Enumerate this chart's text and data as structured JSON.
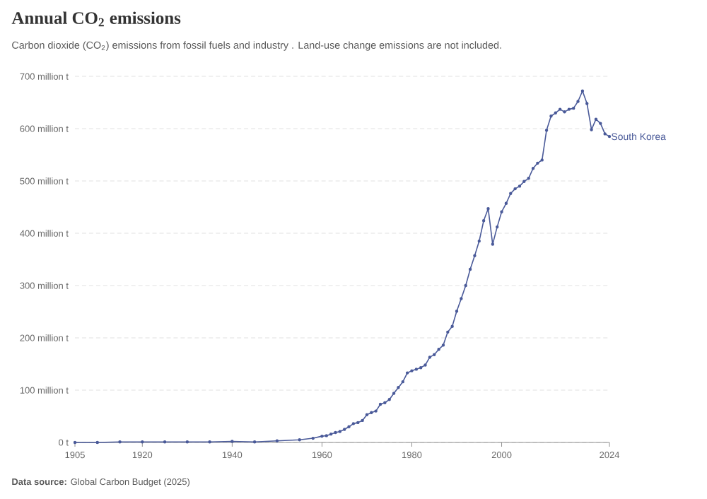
{
  "chart_data": {
    "type": "line",
    "title": "Annual CO$_{2}$ emissions",
    "subtitle": "Carbon dioxide (CO$_{2}$) emissions from fossil fuels and industry . Land-use change emissions are not included.",
    "annotations": [
      "**Data source:** Global Carbon Budget (2025)"
    ],
    "xlim": [
      1905,
      2024
    ],
    "xticks": [
      1905,
      1920,
      1940,
      1960,
      1980,
      2000,
      2024
    ],
    "ylim": [
      0,
      700
    ],
    "yticks": [
      {
        "value": 0,
        "label": "0 t"
      },
      {
        "value": 100,
        "label": "100 million t"
      },
      {
        "value": 200,
        "label": "200 million t"
      },
      {
        "value": 300,
        "label": "300 million t"
      },
      {
        "value": 400,
        "label": "400 million t"
      },
      {
        "value": 500,
        "label": "500 million t"
      },
      {
        "value": 600,
        "label": "600 million t"
      },
      {
        "value": 700,
        "label": "700 million t"
      }
    ],
    "grid": "y",
    "marker": "circle",
    "line_style": "solid",
    "series": [
      {
        "name": "South Korea",
        "color": "#4a5a99",
        "x": [
          1905,
          1910,
          1915,
          1920,
          1925,
          1930,
          1935,
          1940,
          1945,
          1950,
          1955,
          1958,
          1960,
          1961,
          1962,
          1963,
          1964,
          1965,
          1966,
          1967,
          1968,
          1969,
          1970,
          1971,
          1972,
          1973,
          1974,
          1975,
          1976,
          1977,
          1978,
          1979,
          1980,
          1981,
          1982,
          1983,
          1984,
          1985,
          1986,
          1987,
          1988,
          1989,
          1990,
          1991,
          1992,
          1993,
          1994,
          1995,
          1996,
          1997,
          1998,
          1999,
          2000,
          2001,
          2002,
          2003,
          2004,
          2005,
          2006,
          2007,
          2008,
          2009,
          2010,
          2011,
          2012,
          2013,
          2014,
          2015,
          2016,
          2017,
          2018,
          2019,
          2020,
          2021,
          2022,
          2023,
          2024
        ],
        "values": [
          0,
          0,
          1,
          1,
          1,
          1,
          1,
          2,
          1,
          3,
          5,
          8,
          12,
          13,
          16,
          19,
          21,
          25,
          30,
          36,
          38,
          42,
          53,
          57,
          60,
          73,
          76,
          82,
          94,
          105,
          116,
          133,
          137,
          140,
          143,
          148,
          163,
          168,
          178,
          186,
          211,
          222,
          251,
          275,
          300,
          331,
          357,
          385,
          424,
          447,
          379,
          412,
          441,
          457,
          476,
          485,
          490,
          499,
          505,
          524,
          534,
          540,
          597,
          624,
          630,
          637,
          632,
          637,
          639,
          652,
          672,
          648,
          598,
          618,
          610,
          590,
          585
        ]
      }
    ]
  }
}
